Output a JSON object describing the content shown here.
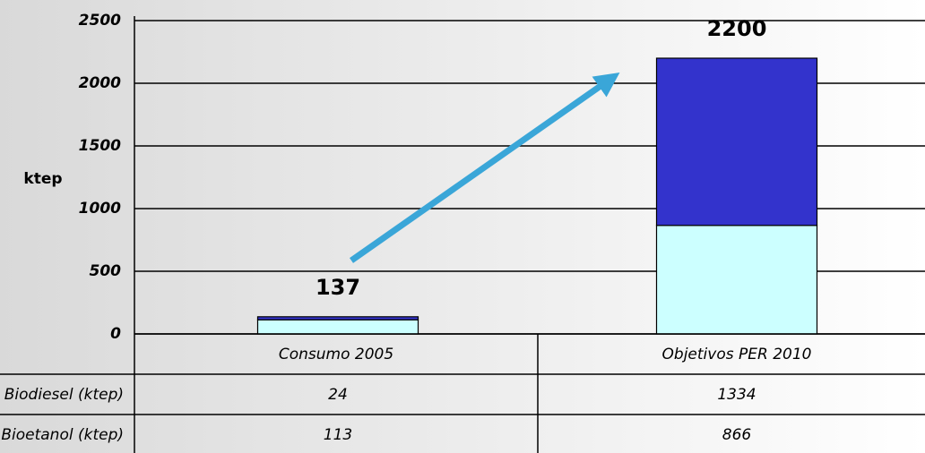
{
  "chart_data": {
    "type": "stacked_bar",
    "y_label": "ktep",
    "categories": [
      "Consumo 2005",
      "Objetivos PER 2010"
    ],
    "series": [
      {
        "name": "Biodiesel (ktep)",
        "color": "#3333cc",
        "values": [
          24,
          1334
        ]
      },
      {
        "name": "Bioetanol (ktep)",
        "color": "#ccffff",
        "values": [
          113,
          866
        ]
      }
    ],
    "total_labels": [
      137,
      2200
    ],
    "ylim": [
      0,
      2500
    ],
    "yticks": [
      0,
      500,
      1000,
      1500,
      2000,
      2500
    ],
    "grid": true
  }
}
